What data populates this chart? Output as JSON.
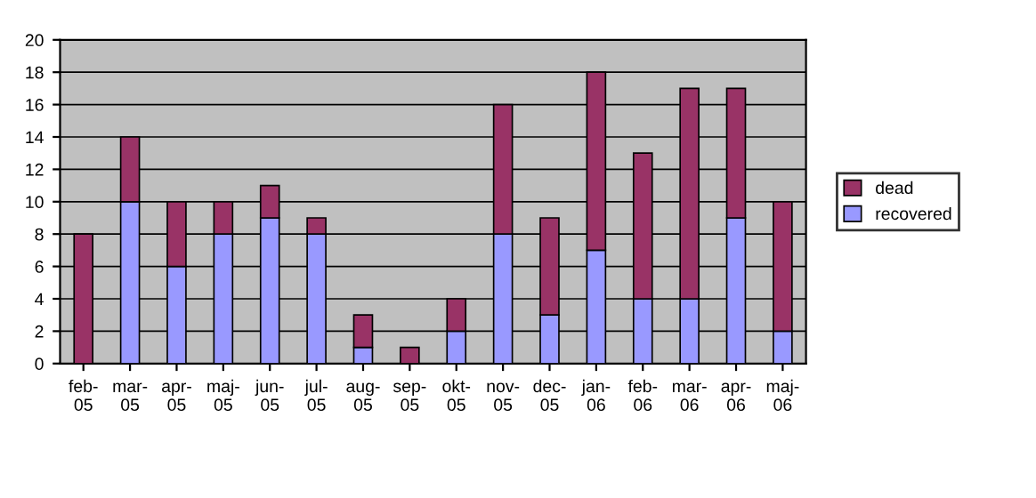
{
  "chart_data": {
    "type": "bar",
    "stacked": true,
    "categories": [
      "feb-05",
      "mar-05",
      "apr-05",
      "maj-05",
      "jun-05",
      "jul-05",
      "aug-05",
      "sep-05",
      "okt-05",
      "nov-05",
      "dec-05",
      "jan-06",
      "feb-06",
      "mar-06",
      "apr-06",
      "maj-06"
    ],
    "series": [
      {
        "name": "recovered",
        "color": "#9999ff",
        "values": [
          0,
          10,
          6,
          8,
          9,
          8,
          1,
          0,
          2,
          8,
          3,
          7,
          4,
          4,
          9,
          2
        ]
      },
      {
        "name": "dead",
        "color": "#993366",
        "values": [
          8,
          4,
          4,
          2,
          2,
          1,
          2,
          1,
          2,
          8,
          6,
          11,
          9,
          13,
          8,
          8
        ]
      }
    ],
    "ylim": [
      0,
      20
    ],
    "yticks": [
      0,
      2,
      4,
      6,
      8,
      10,
      12,
      14,
      16,
      18,
      20
    ],
    "grid": "y",
    "legend": "right"
  }
}
